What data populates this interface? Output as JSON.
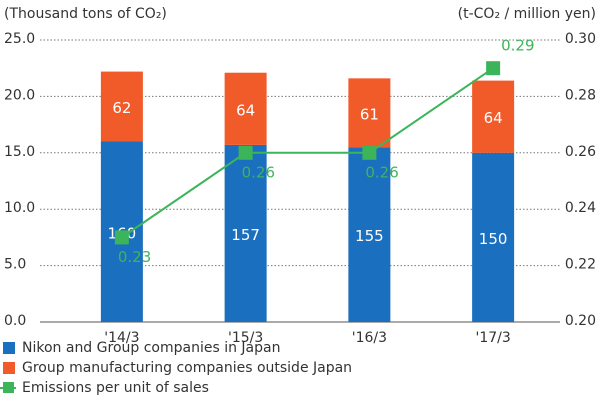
{
  "chart_data": {
    "type": "bar",
    "stacked": true,
    "y_label": "(Thousand tons of CO₂)",
    "y2_label": "(t-CO₂ / million yen)",
    "categories": [
      "'14/3",
      "'15/3",
      "'16/3",
      "'17/3"
    ],
    "series": [
      {
        "name": "Nikon and Group companies in Japan",
        "color": "#1b6fbf",
        "values": [
          16.0,
          15.7,
          15.5,
          15.0
        ],
        "value_labels": [
          "160",
          "157",
          "155",
          "150"
        ]
      },
      {
        "name": "Group manufacturing companies outside Japan",
        "color": "#f15a29",
        "values": [
          6.2,
          6.4,
          6.1,
          6.4
        ],
        "value_labels": [
          "62",
          "64",
          "61",
          "64"
        ]
      },
      {
        "name": "Emissions per unit of sales",
        "color": "#3cb55a",
        "values": [
          0.23,
          0.26,
          0.26,
          0.29
        ],
        "axis": "y2"
      }
    ],
    "ylim": [
      0,
      25
    ],
    "yticks": [
      {
        "value": 0,
        "label": "0.0"
      },
      {
        "value": 5,
        "label": "5.0"
      },
      {
        "value": 10,
        "label": "10.0"
      },
      {
        "value": 15,
        "label": "15.0"
      },
      {
        "value": 20,
        "label": "20.0"
      },
      {
        "value": 25,
        "label": "25.0"
      }
    ],
    "y2lim": [
      0.2,
      0.3
    ],
    "y2ticks": [
      {
        "value": 0.2,
        "label": "0.20"
      },
      {
        "value": 0.22,
        "label": "0.22"
      },
      {
        "value": 0.24,
        "label": "0.24"
      },
      {
        "value": 0.26,
        "label": "0.26"
      },
      {
        "value": 0.28,
        "label": "0.28"
      },
      {
        "value": 0.3,
        "label": "0.30"
      }
    ],
    "grid": true,
    "legend": "bottom"
  }
}
